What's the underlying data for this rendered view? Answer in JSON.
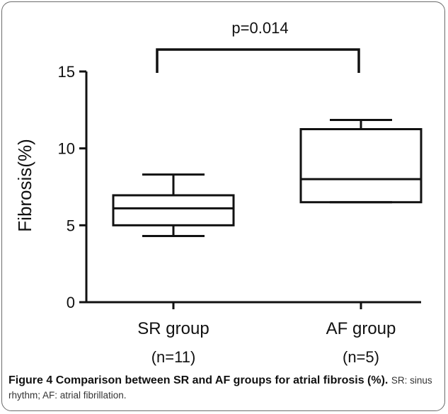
{
  "chart_data": {
    "type": "box",
    "ylabel": "Fibrosis(%)",
    "ylim": [
      0,
      15
    ],
    "yticks": [
      0,
      5,
      10,
      15
    ],
    "categories": [
      "SR group",
      "AF group"
    ],
    "category_sublabels": [
      "(n=11)",
      "(n=5)"
    ],
    "boxes": [
      {
        "category": "SR group",
        "min": 4.3,
        "q1": 5.0,
        "median": 6.1,
        "q3": 6.95,
        "max": 8.3
      },
      {
        "category": "AF group",
        "min": 6.5,
        "q1": 6.5,
        "median": 8.0,
        "q3": 11.25,
        "max": 11.85
      }
    ],
    "annotation": {
      "text": "p=0.014",
      "between": [
        "SR group",
        "AF group"
      ]
    },
    "grid": false
  },
  "caption": {
    "figure_label": "Figure 4",
    "title": "Comparison between SR and AF groups for atrial fibrosis (%).",
    "body": "SR: sinus rhythm; AF: atrial fibrillation."
  },
  "colors": {
    "stroke": "#111111",
    "frame": "#6b6b6b"
  }
}
